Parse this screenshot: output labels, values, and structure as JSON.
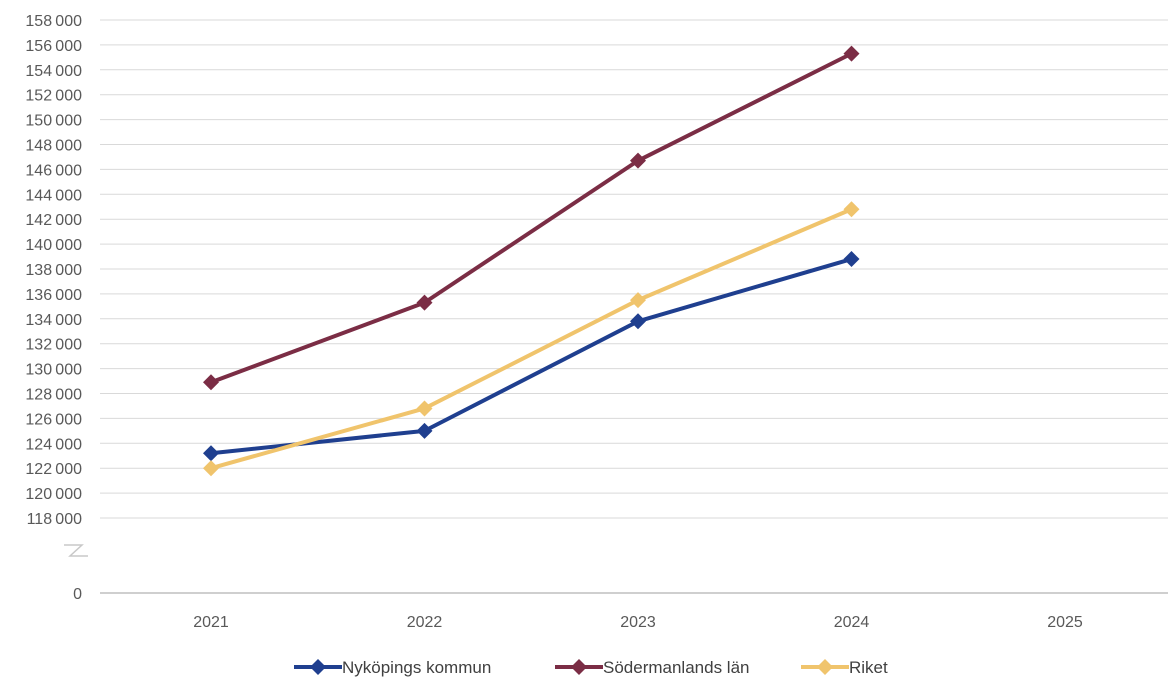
{
  "chart_data": {
    "type": "line",
    "title": "",
    "xlabel": "",
    "ylabel": "",
    "categories": [
      "2021",
      "2022",
      "2023",
      "2024",
      "2025"
    ],
    "ylim": [
      118000,
      158000
    ],
    "y_break": true,
    "y_break_zero_label": "0",
    "y_tick_step": 2000,
    "grid": true,
    "legend_position": "bottom",
    "series": [
      {
        "name": "Nyköpings kommun",
        "color": "#1F3F8F",
        "values": [
          123200,
          125000,
          133800,
          138800,
          null
        ]
      },
      {
        "name": "Södermanlands län",
        "color": "#7B2D45",
        "values": [
          128900,
          135300,
          146700,
          155300,
          null
        ]
      },
      {
        "name": "Riket",
        "color": "#F0C46C",
        "values": [
          122000,
          126800,
          135500,
          142800,
          null
        ]
      }
    ]
  }
}
